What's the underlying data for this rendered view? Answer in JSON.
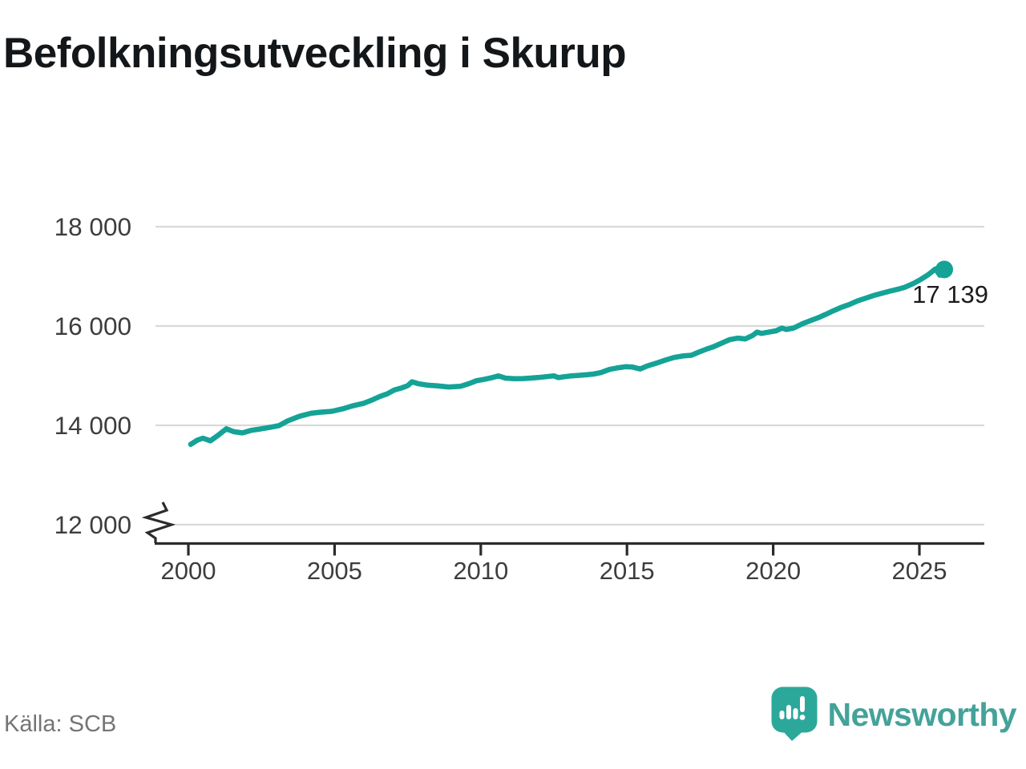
{
  "header": {
    "title": "Befolkningsutveckling i Skurup"
  },
  "footer": {
    "source": "Källa: SCB",
    "brand": "Newsworthy"
  },
  "colors": {
    "line": "#14a396",
    "grid": "#d9d9d9",
    "axis": "#2b2b2b",
    "tick_text": "#3d3d3d",
    "title_text": "#14171a",
    "annotation_text": "#1b1b1b",
    "source_text": "#757575",
    "logo_badge": "#2ca89b",
    "logo_text": "#44a29a"
  },
  "chart_data": {
    "type": "line",
    "title": "Befolkningsutveckling i Skurup",
    "xlabel": "",
    "ylabel": "",
    "x_ticks": [
      {
        "value": 2000,
        "label": "2000"
      },
      {
        "value": 2005,
        "label": "2005"
      },
      {
        "value": 2010,
        "label": "2010"
      },
      {
        "value": 2015,
        "label": "2015"
      },
      {
        "value": 2020,
        "label": "2020"
      },
      {
        "value": 2025,
        "label": "2025"
      }
    ],
    "y_ticks": [
      {
        "value": 18000,
        "label": "18 000"
      },
      {
        "value": 16000,
        "label": "16 000"
      },
      {
        "value": 14000,
        "label": "14 000"
      },
      {
        "value": 12000,
        "label": "12 000"
      }
    ],
    "xlim": [
      1998.85,
      2027.2
    ],
    "ylim": [
      11620,
      18210
    ],
    "grid": true,
    "legend": false,
    "axis_break_bottom": true,
    "annotation": {
      "label": "17 139",
      "value": 17139,
      "year": 2025.85
    },
    "series": [
      {
        "name": "Folkmängd",
        "color": "#14a396",
        "end_dot": true,
        "points": [
          [
            2000.08,
            13618
          ],
          [
            2000.3,
            13700
          ],
          [
            2000.5,
            13742
          ],
          [
            2000.75,
            13688
          ],
          [
            2001.0,
            13793
          ],
          [
            2001.3,
            13930
          ],
          [
            2001.55,
            13872
          ],
          [
            2001.85,
            13848
          ],
          [
            2002.15,
            13900
          ],
          [
            2002.45,
            13925
          ],
          [
            2002.8,
            13962
          ],
          [
            2003.1,
            13995
          ],
          [
            2003.4,
            14090
          ],
          [
            2003.8,
            14183
          ],
          [
            2004.2,
            14243
          ],
          [
            2004.5,
            14265
          ],
          [
            2004.9,
            14283
          ],
          [
            2005.3,
            14336
          ],
          [
            2005.6,
            14390
          ],
          [
            2006.0,
            14445
          ],
          [
            2006.3,
            14515
          ],
          [
            2006.55,
            14582
          ],
          [
            2006.8,
            14634
          ],
          [
            2007.05,
            14715
          ],
          [
            2007.3,
            14755
          ],
          [
            2007.5,
            14800
          ],
          [
            2007.65,
            14878
          ],
          [
            2007.85,
            14840
          ],
          [
            2008.2,
            14808
          ],
          [
            2008.5,
            14797
          ],
          [
            2008.9,
            14772
          ],
          [
            2009.3,
            14786
          ],
          [
            2009.6,
            14840
          ],
          [
            2009.85,
            14898
          ],
          [
            2010.1,
            14924
          ],
          [
            2010.4,
            14963
          ],
          [
            2010.6,
            14996
          ],
          [
            2010.85,
            14950
          ],
          [
            2011.15,
            14940
          ],
          [
            2011.45,
            14942
          ],
          [
            2011.7,
            14952
          ],
          [
            2011.95,
            14963
          ],
          [
            2012.25,
            14980
          ],
          [
            2012.5,
            14996
          ],
          [
            2012.65,
            14961
          ],
          [
            2012.85,
            14979
          ],
          [
            2013.1,
            14996
          ],
          [
            2013.35,
            15006
          ],
          [
            2013.6,
            15017
          ],
          [
            2013.85,
            15033
          ],
          [
            2014.1,
            15061
          ],
          [
            2014.4,
            15126
          ],
          [
            2014.7,
            15160
          ],
          [
            2014.95,
            15181
          ],
          [
            2015.2,
            15172
          ],
          [
            2015.45,
            15136
          ],
          [
            2015.7,
            15196
          ],
          [
            2016.0,
            15251
          ],
          [
            2016.3,
            15311
          ],
          [
            2016.6,
            15366
          ],
          [
            2016.9,
            15396
          ],
          [
            2017.2,
            15412
          ],
          [
            2017.45,
            15475
          ],
          [
            2017.7,
            15530
          ],
          [
            2017.95,
            15580
          ],
          [
            2018.2,
            15645
          ],
          [
            2018.5,
            15724
          ],
          [
            2018.8,
            15757
          ],
          [
            2019.05,
            15741
          ],
          [
            2019.3,
            15812
          ],
          [
            2019.45,
            15877
          ],
          [
            2019.6,
            15851
          ],
          [
            2019.85,
            15878
          ],
          [
            2020.1,
            15904
          ],
          [
            2020.3,
            15958
          ],
          [
            2020.45,
            15931
          ],
          [
            2020.7,
            15959
          ],
          [
            2021.0,
            16045
          ],
          [
            2021.3,
            16115
          ],
          [
            2021.55,
            16170
          ],
          [
            2021.8,
            16235
          ],
          [
            2022.05,
            16305
          ],
          [
            2022.3,
            16370
          ],
          [
            2022.6,
            16432
          ],
          [
            2022.9,
            16510
          ],
          [
            2023.2,
            16568
          ],
          [
            2023.45,
            16618
          ],
          [
            2023.7,
            16658
          ],
          [
            2024.0,
            16704
          ],
          [
            2024.25,
            16738
          ],
          [
            2024.5,
            16780
          ],
          [
            2024.8,
            16858
          ],
          [
            2025.05,
            16938
          ],
          [
            2025.3,
            17032
          ],
          [
            2025.55,
            17150
          ],
          [
            2025.7,
            17022
          ],
          [
            2025.85,
            17139
          ]
        ]
      }
    ]
  }
}
